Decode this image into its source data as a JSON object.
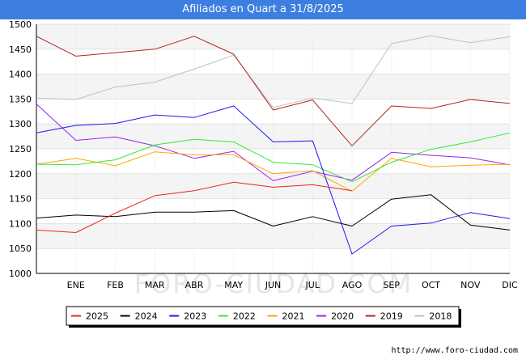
{
  "header": {
    "title": "Afiliados en Quart a 31/8/2025"
  },
  "footer": {
    "credit": "http://www.foro-ciudad.com"
  },
  "watermark": "FORO-CIUDAD.COM",
  "chart_data": {
    "type": "line",
    "title": "Afiliados en Quart a 31/8/2025",
    "xlabel": "",
    "ylabel": "",
    "categories": [
      "",
      "ENE",
      "FEB",
      "MAR",
      "ABR",
      "MAY",
      "JUN",
      "JUL",
      "AGO",
      "SEP",
      "OCT",
      "NOV",
      "DIC"
    ],
    "ylim": [
      1000,
      1500
    ],
    "yticks": [
      1000,
      1050,
      1100,
      1150,
      1200,
      1250,
      1300,
      1350,
      1400,
      1450,
      1500
    ],
    "grid": true,
    "legend_position": "bottom",
    "series": [
      {
        "name": "2025",
        "color": "#e8281e",
        "values": [
          1087,
          1082,
          1121,
          1156,
          1166,
          1183,
          1173,
          1178,
          1166,
          null,
          null,
          null,
          null
        ]
      },
      {
        "name": "2024",
        "color": "#000000",
        "values": [
          1111,
          1117,
          1114,
          1123,
          1123,
          1126,
          1095,
          1114,
          1095,
          1149,
          1158,
          1097,
          1087
        ]
      },
      {
        "name": "2023",
        "color": "#1a1aee",
        "values": [
          1282,
          1297,
          1301,
          1318,
          1313,
          1336,
          1264,
          1266,
          1039,
          1095,
          1101,
          1122,
          1110
        ]
      },
      {
        "name": "2022",
        "color": "#33e833",
        "values": [
          1219,
          1218,
          1228,
          1258,
          1269,
          1264,
          1223,
          1218,
          1184,
          1223,
          1249,
          1264,
          1282
        ]
      },
      {
        "name": "2021",
        "color": "#ffa500",
        "values": [
          1219,
          1231,
          1216,
          1244,
          1238,
          1238,
          1200,
          1206,
          1165,
          1231,
          1214,
          1217,
          1219
        ]
      },
      {
        "name": "2020",
        "color": "#a020f0",
        "values": [
          1340,
          1267,
          1274,
          1256,
          1231,
          1245,
          1186,
          1205,
          1187,
          1243,
          1237,
          1232,
          1218
        ]
      },
      {
        "name": "2019",
        "color": "#b22222",
        "values": [
          1476,
          1436,
          1443,
          1450,
          1476,
          1440,
          1328,
          1348,
          1256,
          1336,
          1331,
          1349,
          1341
        ]
      },
      {
        "name": "2018",
        "color": "#c0c0c0",
        "values": [
          1352,
          1349,
          1374,
          1384,
          1410,
          1438,
          1333,
          1352,
          1341,
          1461,
          1477,
          1463,
          1475
        ]
      }
    ]
  }
}
